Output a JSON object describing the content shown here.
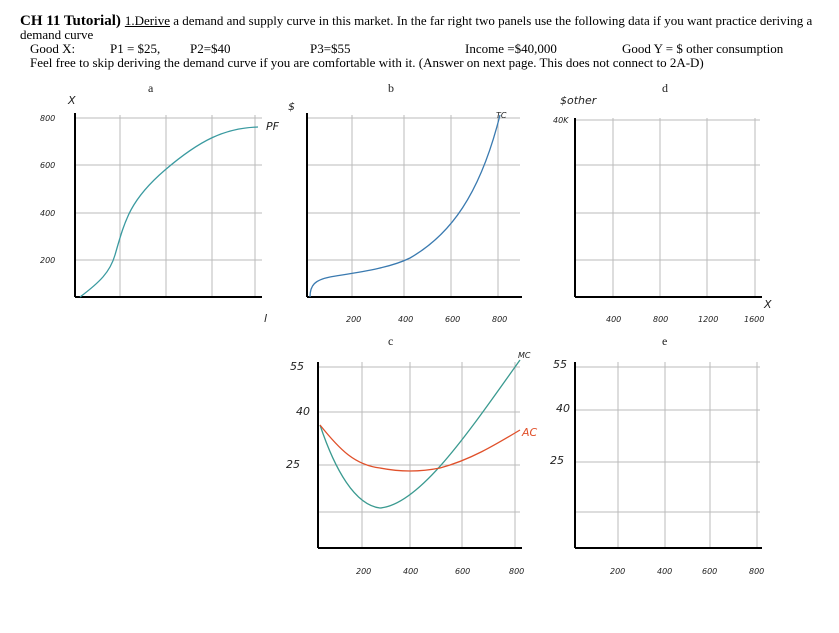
{
  "header": {
    "title": "CH 11 Tutorial)",
    "instruction_lead": "1.Derive",
    "instruction": "a demand and supply curve in this market. In the far right two panels use the following data if you want practice deriving a demand curve",
    "data_line": [
      "Good X:",
      "P1 = $25,",
      "P2=$40",
      "P3=$55",
      "Income =$40,000",
      "Good Y = $ other consumption"
    ],
    "note": "Feel free to skip deriving the demand curve if you are comfortable with it. (Answer on next page. This does not connect to 2A-D)"
  },
  "panels": [
    {
      "letter": "a",
      "y_axis_label": "X",
      "x_axis_label": "l",
      "curve_label": "PF",
      "y_ticks": [
        "800",
        "600",
        "400",
        "200"
      ]
    },
    {
      "letter": "b",
      "y_axis_label": "$",
      "curve_label": "TC",
      "x_ticks": [
        "200",
        "400",
        "600",
        "800"
      ]
    },
    {
      "letter": "d",
      "y_axis_label": "$other",
      "y_ticks": [
        "40K"
      ],
      "x_axis_label": "X",
      "x_ticks": [
        "400",
        "800",
        "1200",
        "1600"
      ]
    },
    {
      "letter": "c",
      "y_ticks": [
        "55",
        "40",
        "25"
      ],
      "curve_labels": [
        "MC",
        "AC"
      ],
      "x_ticks": [
        "200",
        "400",
        "600",
        "800"
      ]
    },
    {
      "letter": "e",
      "y_ticks": [
        "55",
        "40",
        "25"
      ],
      "x_ticks": [
        "200",
        "400",
        "600",
        "800"
      ]
    }
  ]
}
